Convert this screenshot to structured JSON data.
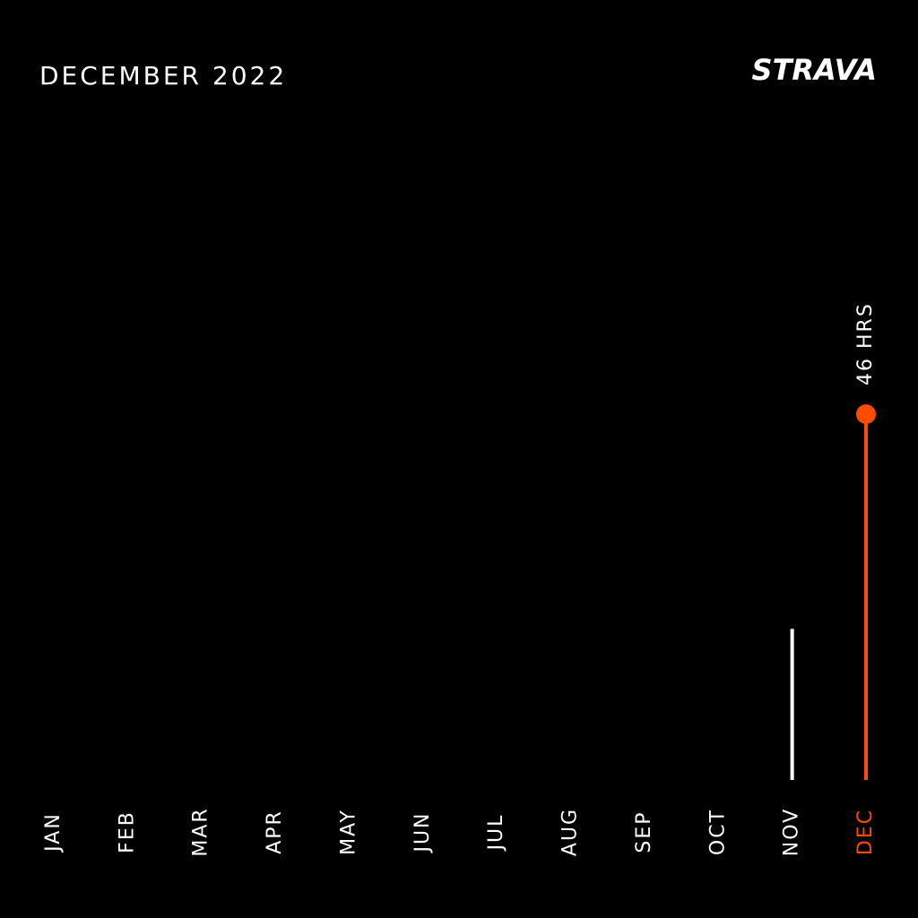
{
  "chart_data": {
    "type": "lollipop",
    "title": "DECEMBER 2022",
    "brand": "STRAVA",
    "categories": [
      "JAN",
      "FEB",
      "MAR",
      "APR",
      "MAY",
      "JUN",
      "JUL",
      "AUG",
      "SEP",
      "OCT",
      "NOV",
      "DEC"
    ],
    "values": [
      0,
      0,
      0,
      0,
      0,
      0,
      0,
      0,
      0,
      0,
      19,
      46
    ],
    "value_labels": [
      null,
      null,
      null,
      null,
      null,
      null,
      null,
      null,
      null,
      null,
      null,
      "46 HRS"
    ],
    "colors": [
      "#ffffff",
      "#ffffff",
      "#ffffff",
      "#ffffff",
      "#ffffff",
      "#ffffff",
      "#ffffff",
      "#ffffff",
      "#ffffff",
      "#ffffff",
      "#ffffff",
      "#fc4c02"
    ]
  }
}
